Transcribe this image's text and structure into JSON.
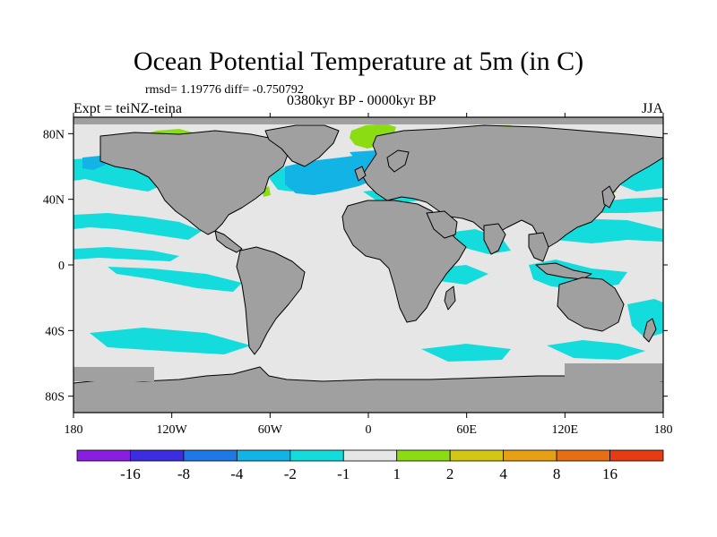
{
  "title": "Ocean Potential Temperature at 5m (in C)",
  "stats": "rmsd= 1.19776 diff= -0.750792",
  "experiment": "Expt = teiNZ-teina",
  "period": "0380kyr BP - 0000kyr BP",
  "season": "JJA",
  "axes": {
    "x_ticks": [
      "180",
      "120W",
      "60W",
      "0",
      "60E",
      "120E",
      "180"
    ],
    "y_ticks": [
      "80N",
      "40N",
      "0",
      "40S",
      "80S"
    ]
  },
  "colorbar": {
    "colors": [
      "#8a1ee0",
      "#3c2ee0",
      "#1e78e6",
      "#12b4e6",
      "#14dcdc",
      "#e6e6e6",
      "#8cdc14",
      "#d2c814",
      "#e6a014",
      "#e66e14",
      "#e63c14"
    ],
    "labels": [
      "-16",
      "-8",
      "-4",
      "-2",
      "-1",
      "1",
      "2",
      "4",
      "8",
      "16"
    ]
  },
  "chart_data": {
    "type": "map",
    "variable": "Ocean Potential Temperature at 5m",
    "units": "C",
    "title": "Ocean Potential Temperature at 5m (in C)",
    "projection": "cylindrical equidistant",
    "xlim": [
      -180,
      180
    ],
    "ylim": [
      -90,
      90
    ],
    "x_ticks": [
      -180,
      -120,
      -60,
      0,
      60,
      120,
      180
    ],
    "y_ticks": [
      80,
      40,
      0,
      -40,
      -80
    ],
    "contour_levels": [
      -16,
      -8,
      -4,
      -2,
      -1,
      1,
      2,
      4,
      8,
      16
    ],
    "land_color": "#a0a0a0",
    "regions": [
      {
        "name": "north-atlantic-cooling",
        "level": "-4 to -2",
        "color": "#12b4e6"
      },
      {
        "name": "north-pacific-cooling",
        "level": "-2 to -1",
        "color": "#14dcdc"
      },
      {
        "name": "tropical-bands-cooling",
        "level": "-2 to -1",
        "color": "#14dcdc"
      },
      {
        "name": "southern-ocean-cooling",
        "level": "-2 to -1",
        "color": "#14dcdc"
      },
      {
        "name": "arctic-warming",
        "level": "1 to 2",
        "color": "#8cdc14"
      },
      {
        "name": "background",
        "level": "-1 to 1",
        "color": "#e6e6e6"
      }
    ]
  }
}
